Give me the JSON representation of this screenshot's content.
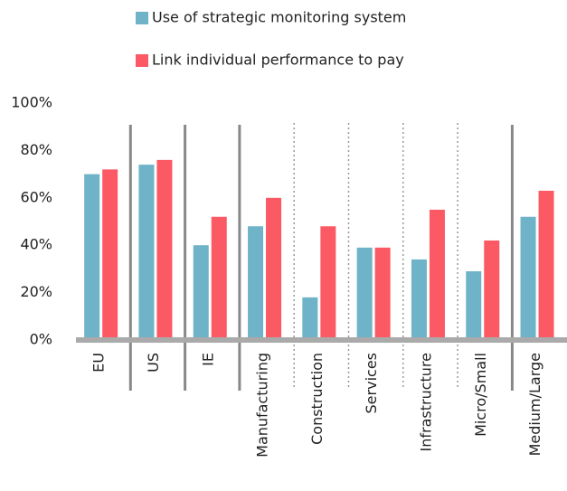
{
  "chart_data": {
    "type": "bar",
    "categories": [
      "EU",
      "US",
      "IE",
      "Manufacturing",
      "Construction",
      "Services",
      "Infrastructure",
      "Micro/Small",
      "Medium/Large"
    ],
    "series": [
      {
        "name": "Use of strategic monitoring system",
        "color": "#6eb3c8",
        "values": [
          70,
          74,
          40,
          48,
          18,
          39,
          34,
          29,
          52
        ]
      },
      {
        "name": "Link individual performance to pay",
        "color": "#fb5a64",
        "values": [
          72,
          76,
          52,
          60,
          48,
          39,
          55,
          42,
          63
        ]
      }
    ],
    "ylim": [
      0,
      100
    ],
    "yticks": [
      {
        "value": 0,
        "label": "0%"
      },
      {
        "value": 20,
        "label": "20%"
      },
      {
        "value": 40,
        "label": "40%"
      },
      {
        "value": 60,
        "label": "60%"
      },
      {
        "value": 80,
        "label": "80%"
      },
      {
        "value": 100,
        "label": "100%"
      }
    ],
    "legend": "top"
  }
}
